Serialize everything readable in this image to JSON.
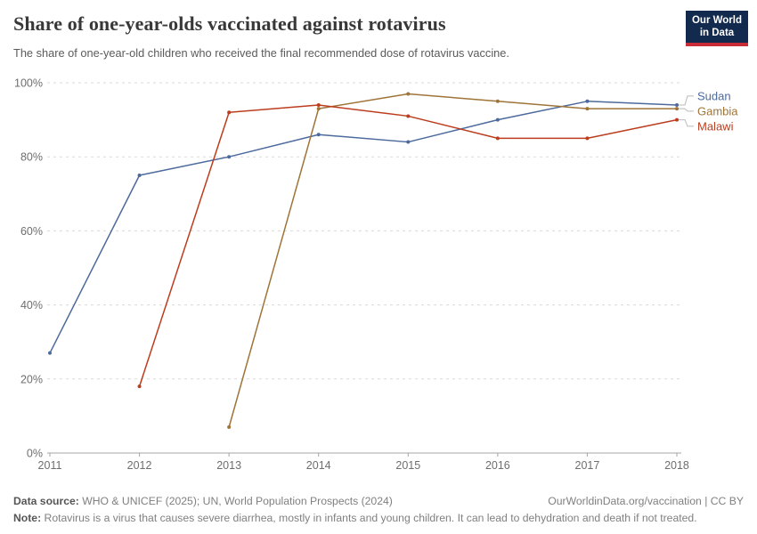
{
  "header": {
    "title": "Share of one-year-olds vaccinated against rotavirus",
    "subtitle": "The share of one-year-old children who received the final recommended dose of rotavirus vaccine.",
    "logo": {
      "line1": "Our World",
      "line2": "in Data",
      "bg_color": "#122A4D",
      "stripe_color": "#C82D37"
    }
  },
  "chart_data": {
    "type": "line",
    "title": "Share of one-year-olds vaccinated against rotavirus",
    "x": [
      2011,
      2012,
      2013,
      2014,
      2015,
      2016,
      2017,
      2018
    ],
    "series": [
      {
        "name": "Sudan",
        "color": "#4C6A9C",
        "values": [
          27,
          75,
          80,
          86,
          84,
          90,
          95,
          94
        ]
      },
      {
        "name": "Gambia",
        "color": "#9E7438",
        "values": [
          null,
          null,
          7,
          93,
          97,
          95,
          93,
          93
        ]
      },
      {
        "name": "Malawi",
        "color": "#BC3D1E",
        "values": [
          null,
          18,
          92,
          94,
          91,
          85,
          85,
          90
        ]
      }
    ],
    "ylim": [
      0,
      100
    ],
    "yticks": [
      {
        "value": 0,
        "label": "0%"
      },
      {
        "value": 20,
        "label": "20%"
      },
      {
        "value": 40,
        "label": "40%"
      },
      {
        "value": 60,
        "label": "60%"
      },
      {
        "value": 80,
        "label": "80%"
      },
      {
        "value": 100,
        "label": "100%"
      }
    ],
    "grid": "horizontal-dashed",
    "legend_position": "right",
    "colors": {
      "gridline": "#dadada",
      "axis": "#a5a5a5",
      "tick_text": "#6e6e6e",
      "legend_connector": "#b9b9b9"
    }
  },
  "footer": {
    "source_label": "Data source:",
    "source_text": " WHO & UNICEF (2025); UN, World Population Prospects (2024)",
    "link_text": "OurWorldinData.org/vaccination | CC BY",
    "note_label": "Note:",
    "note_text": " Rotavirus is a virus that causes severe diarrhea, mostly in infants and young children. It can lead to dehydration and death if not treated."
  }
}
